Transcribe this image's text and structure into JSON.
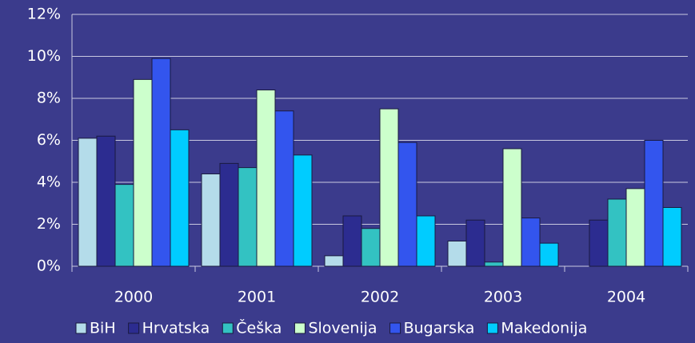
{
  "chart_data": {
    "type": "bar",
    "categories": [
      "2000",
      "2001",
      "2002",
      "2003",
      "2004"
    ],
    "series": [
      {
        "name": "BiH",
        "color": "#b4dcea",
        "values": [
          6.1,
          4.4,
          0.5,
          1.2,
          null
        ]
      },
      {
        "name": "Hrvatska",
        "color": "#2c2c90",
        "values": [
          6.2,
          4.9,
          2.4,
          2.2,
          2.2
        ]
      },
      {
        "name": "Češka",
        "color": "#33c2c2",
        "values": [
          3.9,
          4.7,
          1.8,
          0.2,
          3.2
        ]
      },
      {
        "name": "Slovenija",
        "color": "#ccffcc",
        "values": [
          8.9,
          8.4,
          7.5,
          5.6,
          3.7
        ]
      },
      {
        "name": "Bugarska",
        "color": "#3355ee",
        "values": [
          9.9,
          7.4,
          5.9,
          2.3,
          6.0
        ]
      },
      {
        "name": "Makedonija",
        "color": "#00ccff",
        "values": [
          6.5,
          5.3,
          2.4,
          1.1,
          2.8
        ]
      }
    ],
    "ylim": [
      0,
      12
    ],
    "yticks": [
      {
        "value": 0,
        "label": "0%"
      },
      {
        "value": 2,
        "label": "2%"
      },
      {
        "value": 4,
        "label": "4%"
      },
      {
        "value": 6,
        "label": "6%"
      },
      {
        "value": 8,
        "label": "8%"
      },
      {
        "value": 10,
        "label": "10%"
      },
      {
        "value": 12,
        "label": "12%"
      }
    ],
    "grid": true
  }
}
